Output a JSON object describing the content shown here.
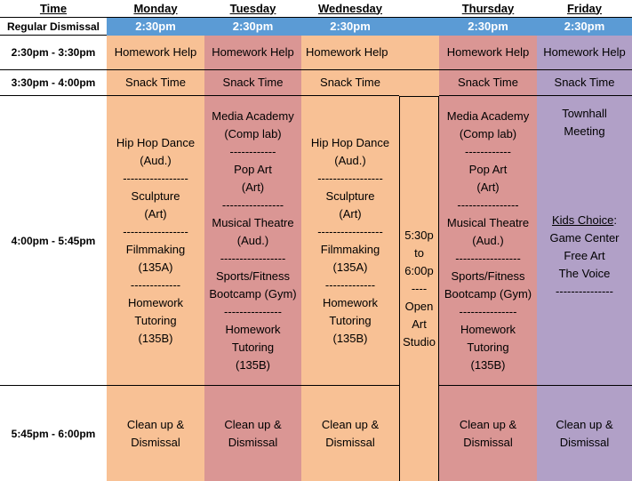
{
  "header": {
    "time": "Time",
    "days": [
      "Monday",
      "Tuesday",
      "Wednesday",
      "Thursday",
      "Friday"
    ]
  },
  "dismissal": {
    "label": "Regular Dismissal",
    "times": [
      "2:30pm",
      "2:30pm",
      "2:30pm",
      "2:30pm",
      "2:30pm"
    ]
  },
  "time_slots": [
    "2:30pm - 3:30pm",
    "3:30pm - 4:00pm",
    "4:00pm - 5:45pm",
    "5:45pm - 6:00pm"
  ],
  "homework_help": {
    "monday": "Homework Help",
    "tuesday": "Homework Help",
    "wednesday": "Homework Help",
    "thursday": "Homework Help",
    "friday": "Homework Help"
  },
  "snack_time": {
    "monday": "Snack Time",
    "tuesday": "Snack Time",
    "wednesday": "Snack Time",
    "thursday": "Snack Time",
    "friday": "Snack Time"
  },
  "activities": {
    "monday": [
      "Hip Hop Dance",
      "(Aud.)",
      "-----------------",
      "Sculpture",
      "(Art)",
      "-----------------",
      "Filmmaking",
      "(135A)",
      "-------------",
      "Homework",
      "Tutoring",
      "(135B)"
    ],
    "tuesday": [
      "Media Academy",
      "(Comp lab)",
      "------------",
      "Pop Art",
      "(Art)",
      "----------------",
      "Musical Theatre",
      "(Aud.)",
      "-----------------",
      "Sports/Fitness",
      "Bootcamp (Gym)",
      "---------------",
      "Homework",
      "Tutoring",
      "(135B)"
    ],
    "wednesday": [
      "Hip Hop Dance",
      "(Aud.)",
      "-----------------",
      "Sculpture",
      "(Art)",
      "-----------------",
      "Filmmaking",
      "(135A)",
      "-------------",
      "Homework",
      "Tutoring",
      "(135B)"
    ],
    "thursday": [
      "Media Academy",
      "(Comp lab)",
      "------------",
      "Pop Art",
      "(Art)",
      "----------------",
      "Musical Theatre",
      "(Aud.)",
      "-----------------",
      "Sports/Fitness",
      "Bootcamp (Gym)",
      "---------------",
      "Homework",
      "Tutoring",
      "(135B)"
    ],
    "friday": {
      "townhall": [
        "Townhall",
        "Meeting"
      ],
      "kids_choice_title": "Kids Choice",
      "kids_choice_colon": ":",
      "kids_choice_items": [
        "Game Center",
        "Free Art",
        "The Voice"
      ],
      "divider": "---------------"
    }
  },
  "open_art": [
    "5:30p",
    "to",
    "6:00p",
    "----",
    "Open",
    "Art",
    "Studio"
  ],
  "cleanup": {
    "monday": [
      "Clean up &",
      "Dismissal"
    ],
    "tuesday": [
      "Clean up &",
      "Dismissal"
    ],
    "wednesday": [
      "Clean up &",
      "Dismissal"
    ],
    "thursday": [
      "Clean up &",
      "Dismissal"
    ],
    "friday": [
      "Clean up &",
      "Dismissal"
    ]
  },
  "colors": {
    "orange": "#f8c195",
    "rose": "#da9694",
    "purple": "#b1a0c7",
    "dismissal_blue": "#5b9bd5"
  }
}
